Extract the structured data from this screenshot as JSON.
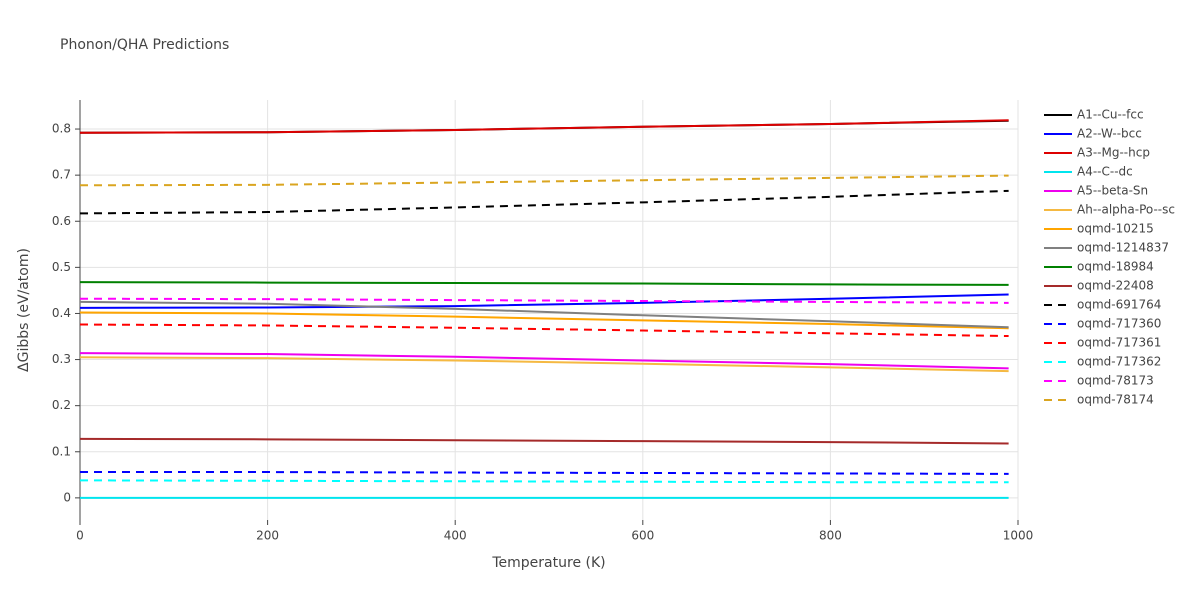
{
  "chart_data": {
    "type": "line",
    "title": "Phonon/QHA Predictions",
    "x_label": "Temperature (K)",
    "y_label": "ΔGibbs (eV/atom)",
    "x": [
      0,
      200,
      400,
      600,
      800,
      990
    ],
    "xlim": [
      0,
      1000
    ],
    "xticks": [
      0,
      200,
      400,
      600,
      800,
      1000
    ],
    "ylim": [
      -0.048,
      0.863
    ],
    "yticks": [
      0,
      0.1,
      0.2,
      0.3,
      0.4,
      0.5,
      0.6,
      0.7,
      0.8
    ],
    "grid": true,
    "legend": "right",
    "series": [
      {
        "name": "A1--Cu--fcc",
        "color": "#000000",
        "dash": "solid",
        "values": [
          0.792,
          0.793,
          0.798,
          0.805,
          0.811,
          0.818
        ]
      },
      {
        "name": "A2--W--bcc",
        "color": "#0000ff",
        "dash": "solid",
        "values": [
          0.412,
          0.413,
          0.416,
          0.423,
          0.432,
          0.441
        ]
      },
      {
        "name": "A3--Mg--hcp",
        "color": "#dd0000",
        "dash": "solid",
        "values": [
          0.792,
          0.793,
          0.798,
          0.805,
          0.811,
          0.819
        ]
      },
      {
        "name": "A4--C--dc",
        "color": "#00e5ee",
        "dash": "solid",
        "values": [
          0,
          0,
          0,
          0,
          0,
          0
        ]
      },
      {
        "name": "A5--beta-Sn",
        "color": "#ee00ee",
        "dash": "solid",
        "values": [
          0.314,
          0.312,
          0.306,
          0.298,
          0.29,
          0.281
        ]
      },
      {
        "name": "Ah--alpha-Po--sc",
        "color": "#f5b942",
        "dash": "solid",
        "values": [
          0.305,
          0.303,
          0.298,
          0.291,
          0.283,
          0.275
        ]
      },
      {
        "name": "oqmd-10215",
        "color": "#ffa500",
        "dash": "solid",
        "values": [
          0.402,
          0.4,
          0.393,
          0.385,
          0.377,
          0.368
        ]
      },
      {
        "name": "oqmd-1214837",
        "color": "#808080",
        "dash": "solid",
        "values": [
          0.425,
          0.421,
          0.41,
          0.396,
          0.383,
          0.37
        ]
      },
      {
        "name": "oqmd-18984",
        "color": "#008000",
        "dash": "solid",
        "values": [
          0.468,
          0.467,
          0.466,
          0.465,
          0.463,
          0.462
        ]
      },
      {
        "name": "oqmd-22408",
        "color": "#a52a2a",
        "dash": "solid",
        "values": [
          0.128,
          0.127,
          0.125,
          0.123,
          0.121,
          0.118
        ]
      },
      {
        "name": "oqmd-691764",
        "color": "#000000",
        "dash": "dash",
        "values": [
          0.617,
          0.62,
          0.63,
          0.641,
          0.653,
          0.666
        ]
      },
      {
        "name": "oqmd-717360",
        "color": "#0000ff",
        "dash": "dash",
        "values": [
          0.056,
          0.056,
          0.055,
          0.054,
          0.053,
          0.052
        ]
      },
      {
        "name": "oqmd-717361",
        "color": "#ff0000",
        "dash": "dash",
        "values": [
          0.376,
          0.374,
          0.369,
          0.363,
          0.357,
          0.351
        ]
      },
      {
        "name": "oqmd-717362",
        "color": "#00ffff",
        "dash": "dash",
        "values": [
          0.038,
          0.037,
          0.036,
          0.035,
          0.034,
          0.034
        ]
      },
      {
        "name": "oqmd-78173",
        "color": "#ff00ff",
        "dash": "dash",
        "values": [
          0.432,
          0.431,
          0.429,
          0.427,
          0.425,
          0.423
        ]
      },
      {
        "name": "oqmd-78174",
        "color": "#daa520",
        "dash": "dash",
        "values": [
          0.678,
          0.679,
          0.684,
          0.689,
          0.694,
          0.699
        ]
      }
    ]
  }
}
